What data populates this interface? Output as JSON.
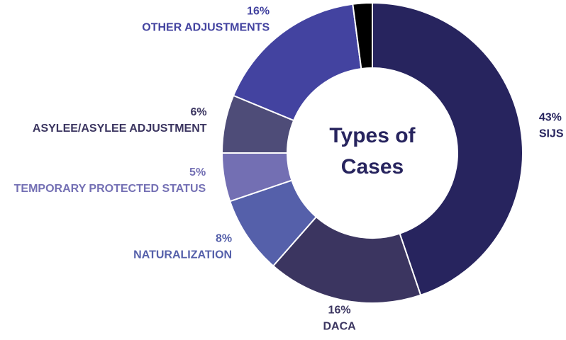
{
  "chart_data": {
    "type": "pie",
    "title": "Types of Cases",
    "categories": [
      "SIJS",
      "DACA",
      "NATURALIZATION",
      "TEMPORARY PROTECTED STATUS",
      "ASYLEE/ASYLEE ADJUSTMENT",
      "OTHER ADJUSTMENTS",
      null
    ],
    "values": [
      43,
      16,
      8,
      5,
      6,
      16,
      2
    ],
    "value_labels": [
      "43%",
      "16%",
      "8%",
      "5%",
      "6%",
      "16%",
      null
    ],
    "colors": [
      "#27245e",
      "#3b3560",
      "#5560aa",
      "#736fb3",
      "#4e4c78",
      "#4343a0",
      "#000000"
    ],
    "label_colors": [
      "#27245e",
      "#3b3560",
      "#5560aa",
      "#7470b4",
      "#3b3560",
      "#4343a0",
      "#000000"
    ]
  }
}
